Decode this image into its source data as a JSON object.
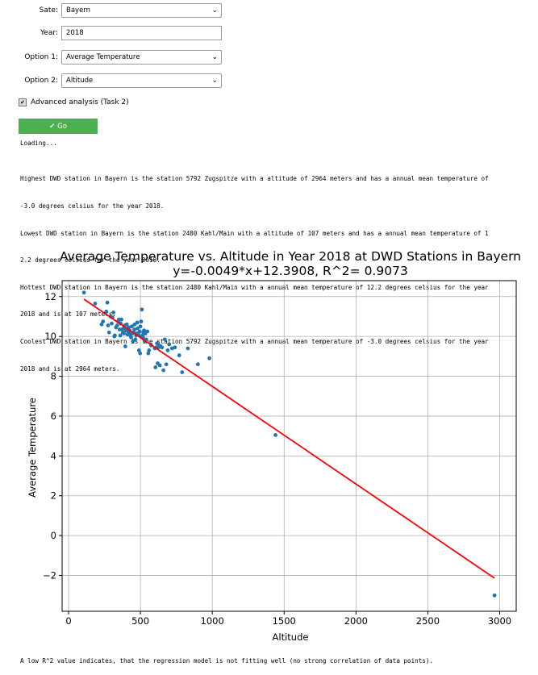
{
  "form": {
    "state_label": "Sate:",
    "state_value": "Bayern",
    "year_label": "Year:",
    "year_value": "2018",
    "option1_label": "Option 1:",
    "option1_value": "Average Temperature",
    "option2_label": "Option 2:",
    "option2_value": "Altitude",
    "advanced_label": "Advanced analysis (Task 2)",
    "advanced_checked": true,
    "go_label": "Go"
  },
  "output": {
    "loading": "Loading...",
    "lines": [
      "Highest DWD station in Bayern is the station 5792 Zugspitze with a altitude of 2964 meters and has a annual mean temperature of",
      "-3.0 degrees celsius for the year 2018.",
      "Lowest DWD station in Bayern is the station 2480 Kahl/Main with a altitude of 107 meters and has a annual mean temperature of 1",
      "2.2 degrees celsius for the year 2018.",
      "Hottest DWD station in Bayern is the station 2480 Kahl/Main with a annual mean temperature of 12.2 degrees celsius for the year",
      "2018 and is at 107 meters.",
      "Coolest DWD station in Bayern is the station 5792 Zugspitze with a annual mean temperature of -3.0 degrees celsius for the year",
      "2018 and is at 2964 meters."
    ],
    "footer": "A low R^2 value indicates, that the regression model is not fitting well (no strong correlation of data points)."
  },
  "colors": {
    "points": "#1f77b4",
    "regression": "#ff0000",
    "go_button": "#4caf50"
  },
  "chart_data": {
    "type": "scatter",
    "title": "Average Temperature vs. Altitude in Year 2018 at DWD Stations in Bayern",
    "subtitle": "y=-0.0049*x+12.3908, R^2= 0.9073",
    "xlabel": "Altitude",
    "ylabel": "Average Temperature",
    "xlim": [
      -45,
      3115
    ],
    "ylim": [
      -3.8,
      12.8
    ],
    "xticks": [
      0,
      500,
      1000,
      1500,
      2000,
      2500,
      3000
    ],
    "yticks": [
      -2,
      0,
      2,
      4,
      6,
      8,
      10,
      12
    ],
    "grid": true,
    "regression": {
      "slope": -0.0049,
      "intercept": 12.3908,
      "x_range": [
        107,
        2964
      ]
    },
    "series": [
      {
        "name": "",
        "x": [
          107,
          185,
          230,
          240,
          262,
          270,
          275,
          282,
          292,
          300,
          305,
          312,
          318,
          322,
          330,
          338,
          345,
          350,
          355,
          360,
          362,
          368,
          372,
          378,
          382,
          385,
          390,
          395,
          400,
          405,
          410,
          415,
          418,
          420,
          425,
          430,
          435,
          440,
          445,
          448,
          452,
          458,
          460,
          465,
          470,
          475,
          478,
          480,
          485,
          490,
          495,
          498,
          500,
          502,
          505,
          510,
          515,
          518,
          520,
          525,
          530,
          535,
          540,
          548,
          555,
          560,
          575,
          600,
          605,
          610,
          615,
          620,
          625,
          630,
          635,
          640,
          650,
          660,
          670,
          680,
          690,
          700,
          720,
          740,
          770,
          790,
          830,
          900,
          980,
          1440,
          2964
        ],
        "y": [
          12.2,
          11.65,
          10.6,
          10.75,
          11.25,
          11.7,
          10.55,
          10.2,
          11.0,
          10.65,
          10.95,
          11.2,
          10.0,
          10.05,
          10.45,
          10.55,
          10.75,
          10.85,
          10.35,
          10.05,
          10.65,
          10.85,
          10.35,
          10.2,
          10.4,
          10.15,
          10.55,
          9.5,
          10.3,
          10.6,
          10.1,
          10.25,
          10.45,
          10.2,
          10.3,
          10.05,
          9.95,
          10.5,
          10.15,
          9.75,
          10.2,
          10.35,
          10.6,
          9.85,
          10.05,
          10.15,
          10.7,
          10.4,
          10.1,
          9.3,
          10.25,
          9.15,
          10.5,
          10.0,
          10.75,
          11.35,
          10.05,
          9.95,
          10.2,
          10.3,
          9.75,
          10.15,
          9.85,
          10.25,
          9.15,
          9.3,
          9.55,
          9.4,
          8.45,
          9.45,
          9.65,
          8.65,
          9.45,
          9.55,
          8.55,
          9.5,
          9.45,
          8.3,
          9.85,
          8.6,
          9.3,
          9.6,
          9.4,
          9.45,
          9.05,
          8.2,
          9.4,
          8.6,
          8.9,
          5.05,
          -3.0
        ]
      }
    ]
  }
}
